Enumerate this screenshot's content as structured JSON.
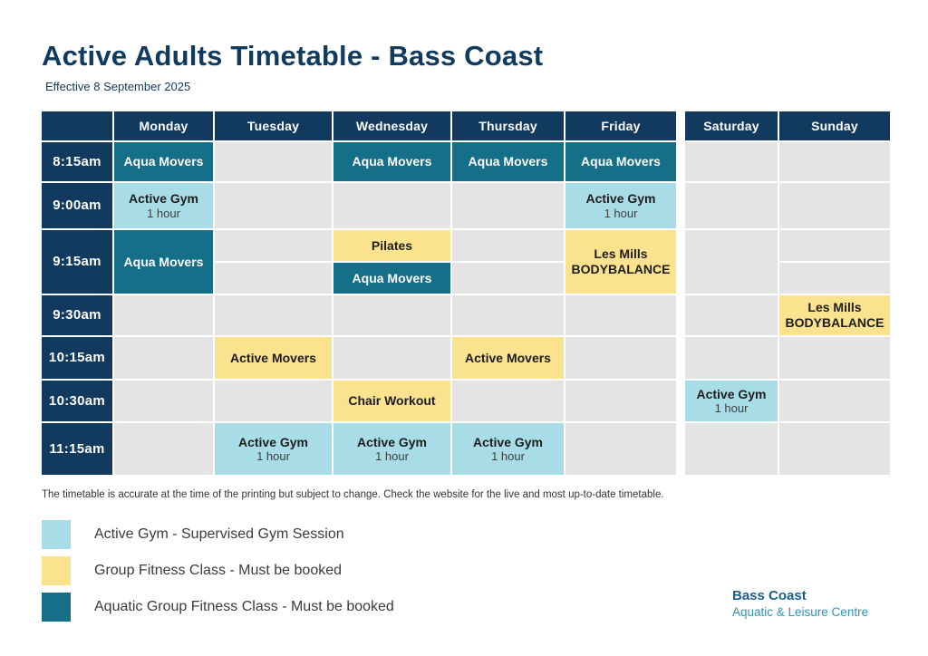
{
  "page": {
    "title": "Active Adults Timetable - Bass Coast",
    "subtitle": "Effective 8 September 2025",
    "disclaimer": "The timetable is accurate at the time of the printing but subject to change. Check the website for the live and most up-to-date timetable."
  },
  "colors": {
    "navy": "#113a5e",
    "teal_aquatic": "#156f88",
    "light_blue_gym": "#a8dde8",
    "yellow_group": "#fae28f",
    "empty_cell_gray": "#e4e4e4",
    "logo_blue": "#1a5e8e",
    "logo_teal": "#2e93b6"
  },
  "timetable": {
    "days": {
      "monday": "Monday",
      "tuesday": "Tuesday",
      "wednesday": "Wednesday",
      "thursday": "Thursday",
      "friday": "Friday",
      "saturday": "Saturday",
      "sunday": "Sunday"
    },
    "times": {
      "t815": "8:15am",
      "t900": "9:00am",
      "t915": "9:15am",
      "t930": "9:30am",
      "t1015": "10:15am",
      "t1030": "10:30am",
      "t1115": "11:15am"
    }
  },
  "schedule": [
    {
      "day": "Monday",
      "time": "8:15am",
      "line1": "Aqua Movers",
      "category": "aquatic"
    },
    {
      "day": "Wednesday",
      "time": "8:15am",
      "line1": "Aqua Movers",
      "category": "aquatic"
    },
    {
      "day": "Thursday",
      "time": "8:15am",
      "line1": "Aqua Movers",
      "category": "aquatic"
    },
    {
      "day": "Friday",
      "time": "8:15am",
      "line1": "Aqua Movers",
      "category": "aquatic"
    },
    {
      "day": "Monday",
      "time": "9:00am",
      "line1": "Active Gym",
      "sub": "1 hour",
      "category": "gym"
    },
    {
      "day": "Friday",
      "time": "9:00am",
      "line1": "Active Gym",
      "sub": "1 hour",
      "category": "gym"
    },
    {
      "day": "Monday",
      "time": "9:15am",
      "line1": "Aqua Movers",
      "category": "aquatic"
    },
    {
      "day": "Wednesday",
      "time": "9:15am",
      "line1": "Pilates",
      "category": "group"
    },
    {
      "day": "Wednesday",
      "time": "9:15am",
      "line1": "Aqua Movers",
      "category": "aquatic"
    },
    {
      "day": "Friday",
      "time": "9:15am",
      "line1": "Les Mills",
      "line2": "BODYBALANCE",
      "category": "group"
    },
    {
      "day": "Sunday",
      "time": "9:30am",
      "line1": "Les Mills",
      "line2": "BODYBALANCE",
      "category": "group"
    },
    {
      "day": "Tuesday",
      "time": "10:15am",
      "line1": "Active Movers",
      "category": "group"
    },
    {
      "day": "Thursday",
      "time": "10:15am",
      "line1": "Active Movers",
      "category": "group"
    },
    {
      "day": "Wednesday",
      "time": "10:30am",
      "line1": "Chair Workout",
      "category": "group"
    },
    {
      "day": "Saturday",
      "time": "10:30am",
      "line1": "Active Gym",
      "sub": "1 hour",
      "category": "gym"
    },
    {
      "day": "Tuesday",
      "time": "11:15am",
      "line1": "Active Gym",
      "sub": "1 hour",
      "category": "gym"
    },
    {
      "day": "Wednesday",
      "time": "11:15am",
      "line1": "Active Gym",
      "sub": "1 hour",
      "category": "gym"
    },
    {
      "day": "Thursday",
      "time": "11:15am",
      "line1": "Active Gym",
      "sub": "1 hour",
      "category": "gym"
    }
  ],
  "legend": {
    "items": [
      {
        "label": "Active Gym - Supervised Gym Session",
        "color": "#a8dde8"
      },
      {
        "label": "Group Fitness Class - Must be booked",
        "color": "#fae28f"
      },
      {
        "label": "Aquatic Group Fitness Class - Must be booked",
        "color": "#156f88"
      }
    ]
  },
  "logo": {
    "name": "Bass Coast",
    "tagline": "Aquatic & Leisure Centre"
  }
}
